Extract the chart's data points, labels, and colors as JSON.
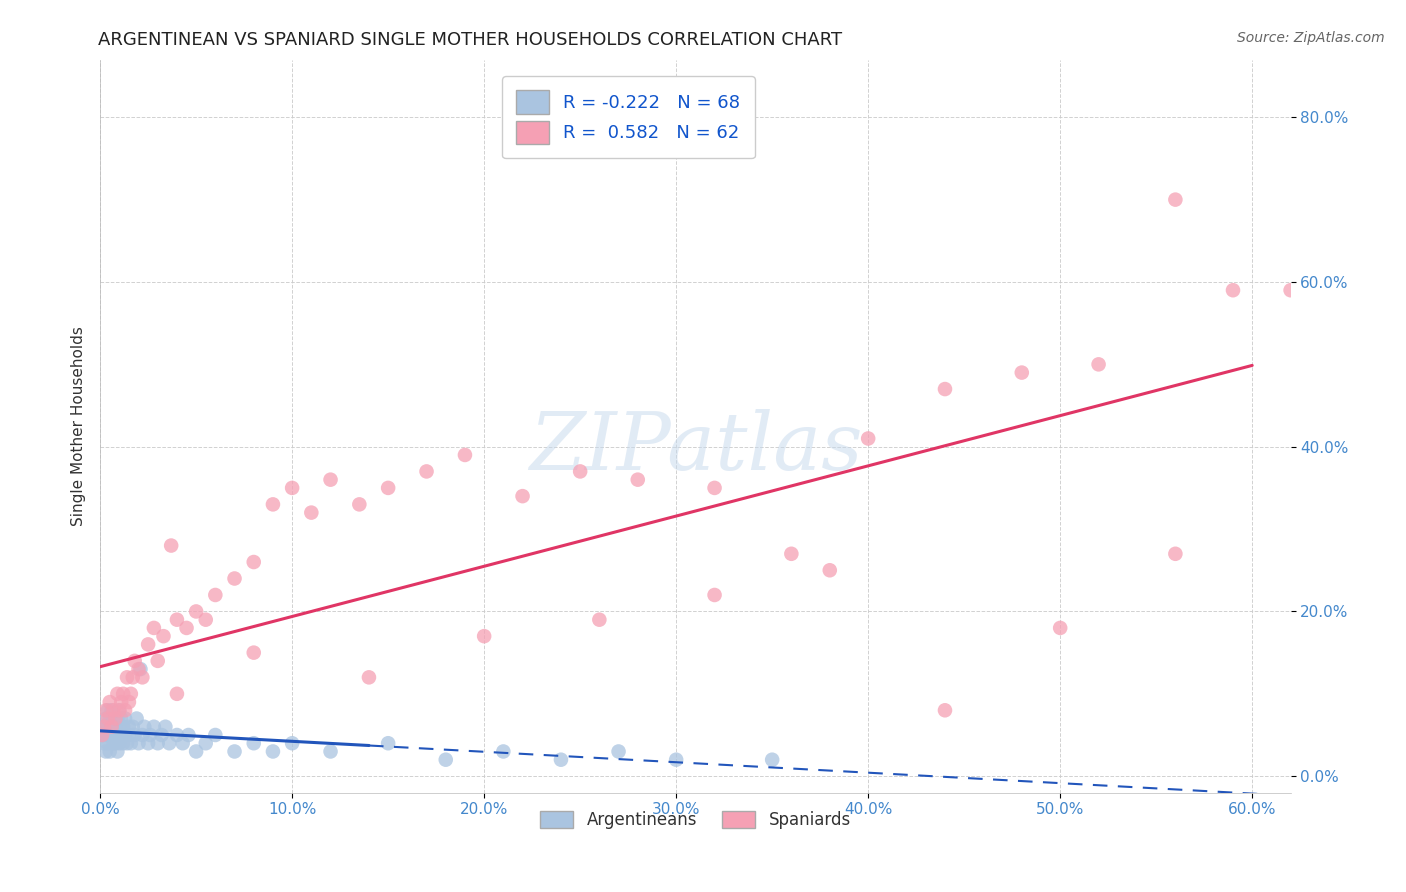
{
  "title": "ARGENTINEAN VS SPANIARD SINGLE MOTHER HOUSEHOLDS CORRELATION CHART",
  "source": "Source: ZipAtlas.com",
  "ylabel_label": "Single Mother Households",
  "xlim": [
    0.0,
    0.62
  ],
  "ylim": [
    -0.02,
    0.87
  ],
  "x_ticks": [
    0.0,
    0.1,
    0.2,
    0.3,
    0.4,
    0.5,
    0.6
  ],
  "y_ticks": [
    0.0,
    0.2,
    0.4,
    0.6,
    0.8
  ],
  "argentina_color": "#aac4e0",
  "spain_color": "#f5a0b4",
  "argentina_line_color": "#2255bb",
  "spain_line_color": "#e03565",
  "legend_R_argentina": "-0.222",
  "legend_N_argentina": "68",
  "legend_R_spain": "0.582",
  "legend_N_spain": "62",
  "background_color": "#ffffff",
  "grid_color": "#cccccc",
  "tick_color_blue": "#4488cc",
  "title_fontsize": 13,
  "axis_label_fontsize": 11,
  "tick_fontsize": 11,
  "source_fontsize": 10,
  "legend_fontsize": 13,
  "watermark_text": "ZIPatlas",
  "arg_x": [
    0.001,
    0.002,
    0.002,
    0.003,
    0.003,
    0.003,
    0.004,
    0.004,
    0.004,
    0.005,
    0.005,
    0.005,
    0.006,
    0.006,
    0.006,
    0.007,
    0.007,
    0.007,
    0.008,
    0.008,
    0.008,
    0.009,
    0.009,
    0.01,
    0.01,
    0.01,
    0.011,
    0.011,
    0.012,
    0.012,
    0.013,
    0.013,
    0.014,
    0.015,
    0.015,
    0.016,
    0.017,
    0.018,
    0.019,
    0.02,
    0.021,
    0.022,
    0.023,
    0.025,
    0.026,
    0.028,
    0.03,
    0.032,
    0.034,
    0.036,
    0.04,
    0.043,
    0.046,
    0.05,
    0.055,
    0.06,
    0.07,
    0.08,
    0.09,
    0.1,
    0.12,
    0.15,
    0.18,
    0.21,
    0.24,
    0.27,
    0.3,
    0.35
  ],
  "arg_y": [
    0.05,
    0.06,
    0.04,
    0.07,
    0.05,
    0.03,
    0.06,
    0.08,
    0.04,
    0.05,
    0.07,
    0.03,
    0.06,
    0.05,
    0.08,
    0.04,
    0.07,
    0.05,
    0.06,
    0.04,
    0.05,
    0.07,
    0.03,
    0.06,
    0.04,
    0.08,
    0.05,
    0.07,
    0.04,
    0.06,
    0.05,
    0.07,
    0.04,
    0.06,
    0.05,
    0.04,
    0.06,
    0.05,
    0.07,
    0.04,
    0.13,
    0.05,
    0.06,
    0.04,
    0.05,
    0.06,
    0.04,
    0.05,
    0.06,
    0.04,
    0.05,
    0.04,
    0.05,
    0.03,
    0.04,
    0.05,
    0.03,
    0.04,
    0.03,
    0.04,
    0.03,
    0.04,
    0.02,
    0.03,
    0.02,
    0.03,
    0.02,
    0.02
  ],
  "spa_x": [
    0.001,
    0.002,
    0.003,
    0.004,
    0.005,
    0.006,
    0.007,
    0.008,
    0.009,
    0.01,
    0.011,
    0.012,
    0.013,
    0.014,
    0.015,
    0.016,
    0.017,
    0.018,
    0.02,
    0.022,
    0.025,
    0.028,
    0.03,
    0.033,
    0.037,
    0.04,
    0.045,
    0.05,
    0.055,
    0.06,
    0.07,
    0.08,
    0.09,
    0.1,
    0.11,
    0.12,
    0.135,
    0.15,
    0.17,
    0.19,
    0.22,
    0.25,
    0.28,
    0.32,
    0.36,
    0.4,
    0.44,
    0.48,
    0.52,
    0.56,
    0.59,
    0.62,
    0.56,
    0.5,
    0.44,
    0.38,
    0.32,
    0.26,
    0.2,
    0.14,
    0.08,
    0.04
  ],
  "spa_y": [
    0.05,
    0.06,
    0.08,
    0.07,
    0.09,
    0.06,
    0.08,
    0.07,
    0.1,
    0.08,
    0.09,
    0.1,
    0.08,
    0.12,
    0.09,
    0.1,
    0.12,
    0.14,
    0.13,
    0.12,
    0.16,
    0.18,
    0.14,
    0.17,
    0.28,
    0.19,
    0.18,
    0.2,
    0.19,
    0.22,
    0.24,
    0.26,
    0.33,
    0.35,
    0.32,
    0.36,
    0.33,
    0.35,
    0.37,
    0.39,
    0.34,
    0.37,
    0.36,
    0.35,
    0.27,
    0.41,
    0.47,
    0.49,
    0.5,
    0.7,
    0.59,
    0.59,
    0.27,
    0.18,
    0.08,
    0.25,
    0.22,
    0.19,
    0.17,
    0.12,
    0.15,
    0.1
  ]
}
